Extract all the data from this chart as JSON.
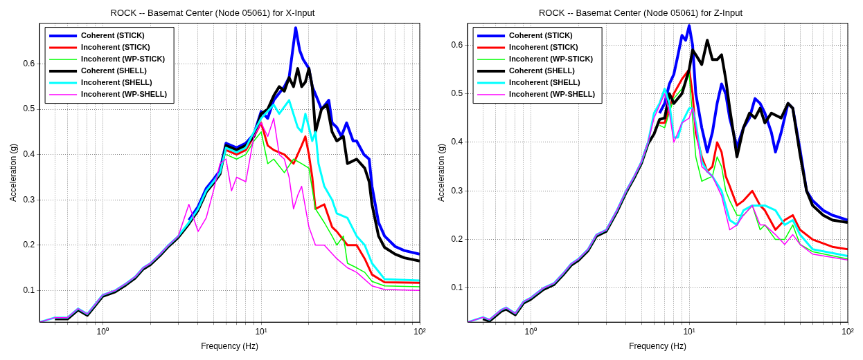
{
  "chart_data": [
    {
      "type": "line",
      "title": "ROCK -- Basemat Center (Node 05061) for X-Input",
      "xlabel": "Frequency (Hz)",
      "ylabel": "Acceleration (g)",
      "log": "x",
      "grid": true,
      "legend": "top left",
      "xlim": [
        0.4,
        100
      ],
      "ylim": [
        0.03,
        0.69
      ],
      "xticks": [
        {
          "value": 0.5,
          "label": null
        },
        {
          "value": 0.6,
          "label": null
        },
        {
          "value": 0.7,
          "label": null
        },
        {
          "value": 0.8,
          "label": null
        },
        {
          "value": 0.9,
          "label": null
        },
        {
          "value": 1,
          "label": "10⁰"
        },
        {
          "value": 2,
          "label": null
        },
        {
          "value": 3,
          "label": null
        },
        {
          "value": 4,
          "label": null
        },
        {
          "value": 5,
          "label": null
        },
        {
          "value": 6,
          "label": null
        },
        {
          "value": 7,
          "label": null
        },
        {
          "value": 8,
          "label": null
        },
        {
          "value": 9,
          "label": null
        },
        {
          "value": 10,
          "label": "10¹"
        },
        {
          "value": 20,
          "label": null
        },
        {
          "value": 30,
          "label": null
        },
        {
          "value": 40,
          "label": null
        },
        {
          "value": 50,
          "label": null
        },
        {
          "value": 60,
          "label": null
        },
        {
          "value": 70,
          "label": null
        },
        {
          "value": 80,
          "label": null
        },
        {
          "value": 90,
          "label": null
        },
        {
          "value": 100,
          "label": "10²"
        }
      ],
      "yticks": [
        0.1,
        0.2,
        0.3,
        0.4,
        0.5,
        0.6
      ],
      "series": [
        {
          "name": "Coherent (STICK)",
          "color": "#0000ff",
          "x": [
            3.5,
            4,
            4.5,
            5,
            5.5,
            6,
            7,
            8,
            9,
            10,
            11,
            12,
            14,
            15,
            16.5,
            17.5,
            18.4,
            20,
            21,
            22.8,
            24,
            26.7,
            28,
            30,
            32,
            34.6,
            38,
            40,
            44.5,
            48,
            50,
            55,
            60,
            70,
            80,
            100
          ],
          "values": [
            0.255,
            0.285,
            0.325,
            0.345,
            0.365,
            0.425,
            0.415,
            0.425,
            0.445,
            0.495,
            0.48,
            0.52,
            0.55,
            0.57,
            0.68,
            0.63,
            0.61,
            0.59,
            0.55,
            0.52,
            0.5,
            0.52,
            0.47,
            0.46,
            0.44,
            0.47,
            0.43,
            0.43,
            0.4,
            0.39,
            0.33,
            0.25,
            0.22,
            0.197,
            0.188,
            0.18
          ]
        },
        {
          "name": "Incoherent (STICK)",
          "color": "#ff0000",
          "x": [
            6,
            7,
            8,
            9,
            10,
            11,
            12,
            14,
            16,
            18,
            19,
            20,
            21,
            22,
            25,
            28,
            30,
            35,
            40,
            45,
            50,
            60,
            100
          ],
          "values": [
            0.41,
            0.4,
            0.41,
            0.44,
            0.47,
            0.42,
            0.41,
            0.4,
            0.38,
            0.42,
            0.44,
            0.4,
            0.35,
            0.28,
            0.29,
            0.24,
            0.23,
            0.2,
            0.2,
            0.17,
            0.135,
            0.118,
            0.117
          ]
        },
        {
          "name": "Incoherent (WP-STICK)",
          "color": "#00ff00",
          "x": [
            6,
            7,
            8,
            9,
            10,
            11,
            12,
            14,
            16,
            18,
            20,
            22,
            25,
            28,
            30,
            33,
            35,
            40,
            45,
            50,
            60,
            100
          ],
          "values": [
            0.4,
            0.39,
            0.4,
            0.43,
            0.45,
            0.38,
            0.39,
            0.36,
            0.39,
            0.38,
            0.37,
            0.28,
            0.25,
            0.22,
            0.2,
            0.22,
            0.16,
            0.15,
            0.14,
            0.12,
            0.11,
            0.108
          ]
        },
        {
          "name": "Coherent (SHELL)",
          "color": "#000000",
          "x": [
            0.5,
            0.6,
            0.7,
            0.8,
            0.9,
            1,
            1.2,
            1.4,
            1.6,
            1.8,
            2,
            2.3,
            2.6,
            3,
            3.5,
            4,
            4.5,
            5,
            5.5,
            6,
            7,
            8,
            9,
            10,
            11,
            12,
            13,
            14,
            15,
            16,
            17,
            18,
            19,
            20,
            21,
            22,
            24,
            26,
            28,
            30,
            33,
            35,
            40,
            45,
            48,
            50,
            55,
            60,
            70,
            80,
            100
          ],
          "values": [
            0.037,
            0.037,
            0.057,
            0.045,
            0.067,
            0.087,
            0.097,
            0.112,
            0.127,
            0.147,
            0.157,
            0.177,
            0.197,
            0.217,
            0.247,
            0.277,
            0.317,
            0.337,
            0.357,
            0.42,
            0.41,
            0.42,
            0.44,
            0.49,
            0.5,
            0.53,
            0.55,
            0.54,
            0.57,
            0.55,
            0.59,
            0.55,
            0.56,
            0.59,
            0.55,
            0.45,
            0.5,
            0.51,
            0.45,
            0.43,
            0.44,
            0.38,
            0.39,
            0.37,
            0.34,
            0.29,
            0.22,
            0.195,
            0.18,
            0.172,
            0.165
          ]
        },
        {
          "name": "Incoherent (SHELL)",
          "color": "#00ffff",
          "x": [
            0.4,
            0.5,
            0.6,
            0.7,
            0.8,
            0.9,
            1,
            1.2,
            1.4,
            1.6,
            1.8,
            2,
            2.3,
            2.6,
            3,
            3.5,
            4,
            4.5,
            5,
            5.5,
            6,
            7,
            8,
            9,
            10,
            12,
            13,
            15,
            17,
            18,
            19,
            20,
            21,
            22,
            23,
            25,
            28,
            30,
            35,
            40,
            45,
            50,
            60,
            100
          ],
          "values": [
            0.03,
            0.04,
            0.04,
            0.06,
            0.048,
            0.07,
            0.09,
            0.1,
            0.115,
            0.13,
            0.15,
            0.16,
            0.18,
            0.2,
            0.22,
            0.25,
            0.28,
            0.32,
            0.34,
            0.36,
            0.415,
            0.405,
            0.415,
            0.45,
            0.48,
            0.51,
            0.49,
            0.52,
            0.46,
            0.45,
            0.49,
            0.46,
            0.43,
            0.45,
            0.38,
            0.33,
            0.3,
            0.27,
            0.26,
            0.22,
            0.2,
            0.16,
            0.125,
            0.122
          ]
        },
        {
          "name": "Incoherent (WP-SHELL)",
          "color": "#ff00ff",
          "x": [
            0.4,
            0.5,
            0.6,
            0.7,
            0.8,
            0.9,
            1,
            1.2,
            1.4,
            1.6,
            1.8,
            2,
            2.3,
            2.6,
            3,
            3.5,
            4,
            4.5,
            5,
            5.5,
            6,
            6.5,
            7,
            8,
            9,
            10,
            11,
            12,
            13,
            14,
            15,
            16,
            17,
            18,
            20,
            22,
            25,
            30,
            35,
            40,
            50,
            60,
            100
          ],
          "values": [
            0.03,
            0.04,
            0.04,
            0.06,
            0.048,
            0.07,
            0.09,
            0.1,
            0.115,
            0.13,
            0.15,
            0.16,
            0.18,
            0.2,
            0.22,
            0.29,
            0.23,
            0.26,
            0.32,
            0.38,
            0.39,
            0.32,
            0.35,
            0.34,
            0.44,
            0.47,
            0.44,
            0.48,
            0.4,
            0.39,
            0.35,
            0.28,
            0.31,
            0.33,
            0.24,
            0.2,
            0.2,
            0.17,
            0.15,
            0.14,
            0.11,
            0.102,
            0.1
          ]
        }
      ]
    },
    {
      "type": "line",
      "title": "ROCK -- Basemat Center (Node 05061) for Z-Input",
      "xlabel": "Frequency (Hz)",
      "ylabel": "Acceleration (g)",
      "log": "x",
      "grid": true,
      "legend": "top left",
      "xlim": [
        0.4,
        100
      ],
      "ylim": [
        0.03,
        0.645
      ],
      "xticks": [
        {
          "value": 0.5,
          "label": null
        },
        {
          "value": 0.6,
          "label": null
        },
        {
          "value": 0.7,
          "label": null
        },
        {
          "value": 0.8,
          "label": null
        },
        {
          "value": 0.9,
          "label": null
        },
        {
          "value": 1,
          "label": "10⁰"
        },
        {
          "value": 2,
          "label": null
        },
        {
          "value": 3,
          "label": null
        },
        {
          "value": 4,
          "label": null
        },
        {
          "value": 5,
          "label": null
        },
        {
          "value": 6,
          "label": null
        },
        {
          "value": 7,
          "label": null
        },
        {
          "value": 8,
          "label": null
        },
        {
          "value": 9,
          "label": null
        },
        {
          "value": 10,
          "label": "10¹"
        },
        {
          "value": 20,
          "label": null
        },
        {
          "value": 30,
          "label": null
        },
        {
          "value": 40,
          "label": null
        },
        {
          "value": 50,
          "label": null
        },
        {
          "value": 60,
          "label": null
        },
        {
          "value": 70,
          "label": null
        },
        {
          "value": 80,
          "label": null
        },
        {
          "value": 90,
          "label": null
        },
        {
          "value": 100,
          "label": "10²"
        }
      ],
      "yticks": [
        0.1,
        0.2,
        0.3,
        0.4,
        0.5,
        0.6
      ],
      "series": [
        {
          "name": "Coherent (STICK)",
          "color": "#0000ff",
          "x": [
            6.5,
            7,
            7.5,
            8,
            8.5,
            9,
            9.5,
            10,
            10.5,
            11,
            12,
            13,
            14,
            15,
            16,
            17,
            18,
            19,
            20,
            22,
            24,
            26,
            28,
            30,
            33,
            35,
            38,
            42,
            45,
            50,
            55,
            60,
            70,
            80,
            100
          ],
          "values": [
            0.46,
            0.48,
            0.52,
            0.54,
            0.58,
            0.62,
            0.61,
            0.64,
            0.6,
            0.5,
            0.43,
            0.38,
            0.42,
            0.48,
            0.52,
            0.5,
            0.45,
            0.42,
            0.39,
            0.43,
            0.45,
            0.49,
            0.48,
            0.46,
            0.42,
            0.38,
            0.42,
            0.48,
            0.47,
            0.385,
            0.3,
            0.28,
            0.26,
            0.25,
            0.24
          ]
        },
        {
          "name": "Incoherent (STICK)",
          "color": "#ff0000",
          "x": [
            6.5,
            7,
            8,
            9,
            10,
            10.5,
            11,
            12,
            13,
            14,
            15,
            16,
            17,
            18,
            20,
            22,
            25,
            28,
            30,
            35,
            40,
            45,
            50,
            60,
            80,
            100
          ],
          "values": [
            0.44,
            0.44,
            0.5,
            0.53,
            0.55,
            0.5,
            0.42,
            0.37,
            0.34,
            0.35,
            0.4,
            0.38,
            0.33,
            0.31,
            0.27,
            0.28,
            0.3,
            0.27,
            0.26,
            0.22,
            0.24,
            0.25,
            0.22,
            0.2,
            0.185,
            0.18
          ]
        },
        {
          "name": "Incoherent (WP-STICK)",
          "color": "#00ff00",
          "x": [
            6.5,
            7,
            8,
            9,
            10,
            10.5,
            11,
            12,
            14,
            15,
            16,
            17,
            18,
            20,
            22,
            25,
            28,
            30,
            35,
            40,
            45,
            50,
            60,
            100
          ],
          "values": [
            0.435,
            0.43,
            0.49,
            0.51,
            0.54,
            0.45,
            0.37,
            0.32,
            0.33,
            0.37,
            0.35,
            0.3,
            0.28,
            0.25,
            0.25,
            0.27,
            0.22,
            0.23,
            0.2,
            0.2,
            0.23,
            0.19,
            0.175,
            0.16
          ]
        },
        {
          "name": "Coherent (SHELL)",
          "color": "#000000",
          "x": [
            0.5,
            0.55,
            0.65,
            0.7,
            0.8,
            0.9,
            1,
            1.2,
            1.4,
            1.6,
            1.8,
            2,
            2.3,
            2.6,
            3,
            3.5,
            4,
            4.5,
            5,
            5.5,
            6,
            6.5,
            7,
            7.5,
            8,
            9,
            10,
            10.5,
            11,
            12,
            13,
            14,
            15,
            16,
            17,
            18,
            19,
            20,
            22,
            24,
            26,
            28,
            30,
            33,
            38,
            42,
            45,
            50,
            55,
            60,
            70,
            80,
            100
          ],
          "values": [
            0.037,
            0.032,
            0.052,
            0.057,
            0.045,
            0.069,
            0.077,
            0.097,
            0.107,
            0.127,
            0.147,
            0.157,
            0.177,
            0.207,
            0.217,
            0.257,
            0.297,
            0.327,
            0.357,
            0.397,
            0.417,
            0.447,
            0.45,
            0.5,
            0.48,
            0.5,
            0.55,
            0.59,
            0.58,
            0.56,
            0.61,
            0.57,
            0.57,
            0.58,
            0.53,
            0.47,
            0.42,
            0.37,
            0.43,
            0.46,
            0.45,
            0.47,
            0.44,
            0.46,
            0.45,
            0.48,
            0.47,
            0.375,
            0.3,
            0.27,
            0.25,
            0.24,
            0.235
          ]
        },
        {
          "name": "Incoherent (SHELL)",
          "color": "#00ffff",
          "x": [
            0.4,
            0.5,
            0.55,
            0.65,
            0.7,
            0.8,
            0.9,
            1,
            1.2,
            1.4,
            1.6,
            1.8,
            2,
            2.3,
            2.6,
            3,
            3.5,
            4,
            4.5,
            5,
            5.5,
            6,
            6.5,
            7,
            7.5,
            8,
            8.5,
            9,
            10,
            10.5,
            11,
            12,
            13,
            14,
            16,
            18,
            20,
            22,
            25,
            30,
            35,
            40,
            45,
            50,
            60,
            100
          ],
          "values": [
            0.03,
            0.04,
            0.035,
            0.055,
            0.06,
            0.048,
            0.072,
            0.08,
            0.1,
            0.11,
            0.13,
            0.15,
            0.16,
            0.18,
            0.21,
            0.22,
            0.26,
            0.3,
            0.33,
            0.36,
            0.4,
            0.46,
            0.48,
            0.51,
            0.48,
            0.41,
            0.41,
            0.44,
            0.47,
            0.47,
            0.44,
            0.36,
            0.34,
            0.33,
            0.3,
            0.24,
            0.23,
            0.26,
            0.27,
            0.27,
            0.26,
            0.23,
            0.24,
            0.21,
            0.18,
            0.166
          ]
        },
        {
          "name": "Incoherent (WP-SHELL)",
          "color": "#ff00ff",
          "x": [
            0.4,
            0.5,
            0.55,
            0.65,
            0.7,
            0.8,
            0.9,
            1,
            1.2,
            1.4,
            1.6,
            1.8,
            2,
            2.3,
            2.6,
            3,
            3.5,
            4,
            4.5,
            5,
            5.5,
            6,
            7,
            7.5,
            8,
            9,
            10,
            10.5,
            11,
            12,
            14,
            16,
            18,
            20,
            22,
            25,
            28,
            30,
            35,
            40,
            45,
            50,
            60,
            100
          ],
          "values": [
            0.03,
            0.04,
            0.035,
            0.055,
            0.06,
            0.048,
            0.072,
            0.08,
            0.1,
            0.11,
            0.13,
            0.15,
            0.16,
            0.18,
            0.21,
            0.22,
            0.26,
            0.3,
            0.33,
            0.36,
            0.4,
            0.45,
            0.5,
            0.46,
            0.4,
            0.44,
            0.45,
            0.47,
            0.43,
            0.35,
            0.33,
            0.29,
            0.22,
            0.23,
            0.25,
            0.27,
            0.23,
            0.23,
            0.21,
            0.19,
            0.21,
            0.19,
            0.17,
            0.158
          ]
        }
      ]
    }
  ]
}
